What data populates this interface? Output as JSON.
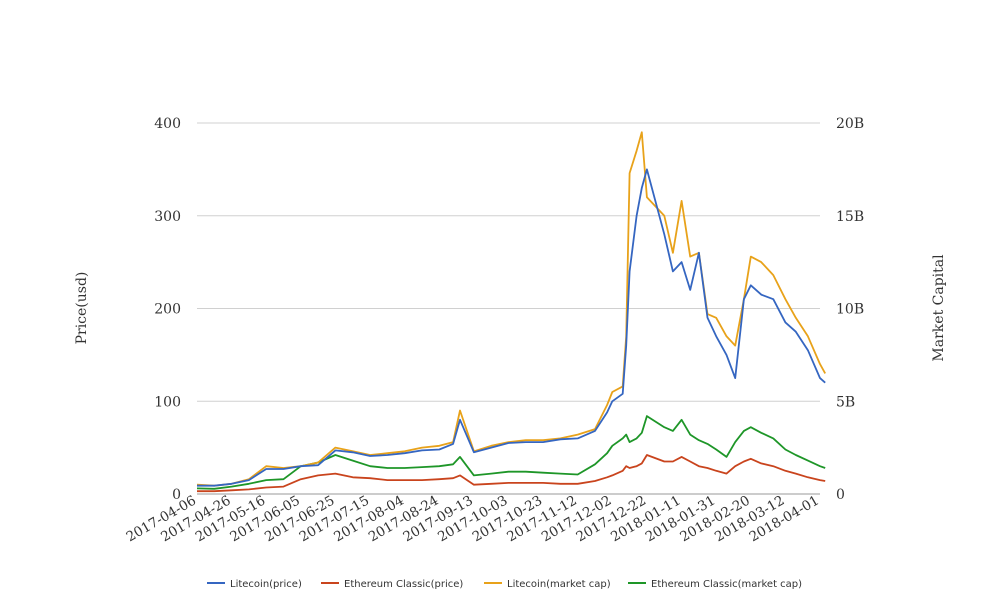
{
  "chart_data": {
    "type": "line",
    "title": "",
    "ylabel_left": "Price(usd)",
    "ylabel_right": "Market Capital",
    "ylim_left": [
      0,
      400
    ],
    "ylim_right": [
      0,
      20000000000
    ],
    "grid": true,
    "legend_position": "bottom",
    "yticks_left": [
      "0",
      "100",
      "200",
      "300",
      "400"
    ],
    "yticks_right": [
      "0",
      "5B",
      "10B",
      "15B",
      "20B"
    ],
    "xticks": [
      "2017-04-06",
      "2017-04-26",
      "2017-05-16",
      "2017-06-05",
      "2017-06-25",
      "2017-07-15",
      "2017-08-04",
      "2017-08-24",
      "2017-09-13",
      "2017-10-03",
      "2017-10-23",
      "2017-11-12",
      "2017-12-02",
      "2017-12-22",
      "2018-01-11",
      "2018-01-31",
      "2018-02-20",
      "2018-03-12",
      "2018-04-01"
    ],
    "x": [
      "2017-04-06",
      "2017-04-16",
      "2017-04-26",
      "2017-05-06",
      "2017-05-16",
      "2017-05-26",
      "2017-06-05",
      "2017-06-15",
      "2017-06-25",
      "2017-07-05",
      "2017-07-15",
      "2017-07-25",
      "2017-08-04",
      "2017-08-14",
      "2017-08-24",
      "2017-09-01",
      "2017-09-05",
      "2017-09-13",
      "2017-09-23",
      "2017-10-03",
      "2017-10-13",
      "2017-10-23",
      "2017-11-02",
      "2017-11-12",
      "2017-11-22",
      "2017-11-29",
      "2017-12-02",
      "2017-12-08",
      "2017-12-10",
      "2017-12-12",
      "2017-12-16",
      "2017-12-19",
      "2017-12-22",
      "2018-01-01",
      "2018-01-06",
      "2018-01-11",
      "2018-01-16",
      "2018-01-21",
      "2018-01-26",
      "2018-01-31",
      "2018-02-06",
      "2018-02-11",
      "2018-02-16",
      "2018-02-20",
      "2018-02-26",
      "2018-03-05",
      "2018-03-12",
      "2018-03-18",
      "2018-03-25",
      "2018-04-01",
      "2018-04-04"
    ],
    "series": [
      {
        "name": "Litecoin(price)",
        "color": "#3566c1",
        "axis": "left",
        "values": [
          9,
          9,
          11,
          15,
          27,
          27,
          30,
          31,
          47,
          45,
          41,
          42,
          44,
          47,
          48,
          54,
          80,
          45,
          50,
          55,
          56,
          56,
          59,
          60,
          68,
          88,
          100,
          108,
          160,
          240,
          300,
          330,
          350,
          280,
          240,
          250,
          220,
          260,
          190,
          170,
          150,
          125,
          210,
          225,
          215,
          210,
          185,
          175,
          155,
          125,
          120
        ]
      },
      {
        "name": "Ethereum Classic(price)",
        "color": "#c9441d",
        "axis": "left",
        "values": [
          3,
          3,
          4,
          5,
          7,
          8,
          16,
          20,
          22,
          18,
          17,
          15,
          15,
          15,
          16,
          17,
          20,
          10,
          11,
          12,
          12,
          12,
          11,
          11,
          14,
          18,
          20,
          25,
          30,
          28,
          30,
          33,
          42,
          35,
          35,
          40,
          35,
          30,
          28,
          25,
          22,
          30,
          35,
          38,
          33,
          30,
          25,
          22,
          18,
          15,
          14
        ]
      },
      {
        "name": "Litecoin(market cap)",
        "color": "#e8a21a",
        "axis": "right",
        "values": [
          500000000,
          450000000,
          550000000,
          800000000,
          1500000000,
          1400000000,
          1500000000,
          1700000000,
          2500000000,
          2300000000,
          2100000000,
          2200000000,
          2300000000,
          2500000000,
          2600000000,
          2800000000,
          4500000000,
          2300000000,
          2600000000,
          2800000000,
          2900000000,
          2900000000,
          3000000000,
          3200000000,
          3500000000,
          4800000000,
          5500000000,
          5800000000,
          8500000000,
          17300000000,
          18500000000,
          19500000000,
          16000000000,
          15000000000,
          13000000000,
          15800000000,
          12800000000,
          13000000000,
          9700000000,
          9500000000,
          8500000000,
          8000000000,
          10500000000,
          12800000000,
          12500000000,
          11800000000,
          10500000000,
          9500000000,
          8500000000,
          7000000000,
          6500000000
        ]
      },
      {
        "name": "Ethereum Classic(market cap)",
        "color": "#1e9628",
        "axis": "right",
        "values": [
          300000000,
          280000000,
          400000000,
          550000000,
          750000000,
          800000000,
          1500000000,
          1700000000,
          2100000000,
          1800000000,
          1500000000,
          1400000000,
          1400000000,
          1450000000,
          1500000000,
          1600000000,
          2000000000,
          1000000000,
          1100000000,
          1200000000,
          1200000000,
          1150000000,
          1100000000,
          1050000000,
          1600000000,
          2200000000,
          2600000000,
          3000000000,
          3200000000,
          2800000000,
          3000000000,
          3300000000,
          4200000000,
          3600000000,
          3400000000,
          4000000000,
          3200000000,
          2900000000,
          2700000000,
          2400000000,
          2000000000,
          2800000000,
          3400000000,
          3600000000,
          3300000000,
          3000000000,
          2400000000,
          2100000000,
          1800000000,
          1500000000,
          1400000000
        ]
      }
    ]
  }
}
